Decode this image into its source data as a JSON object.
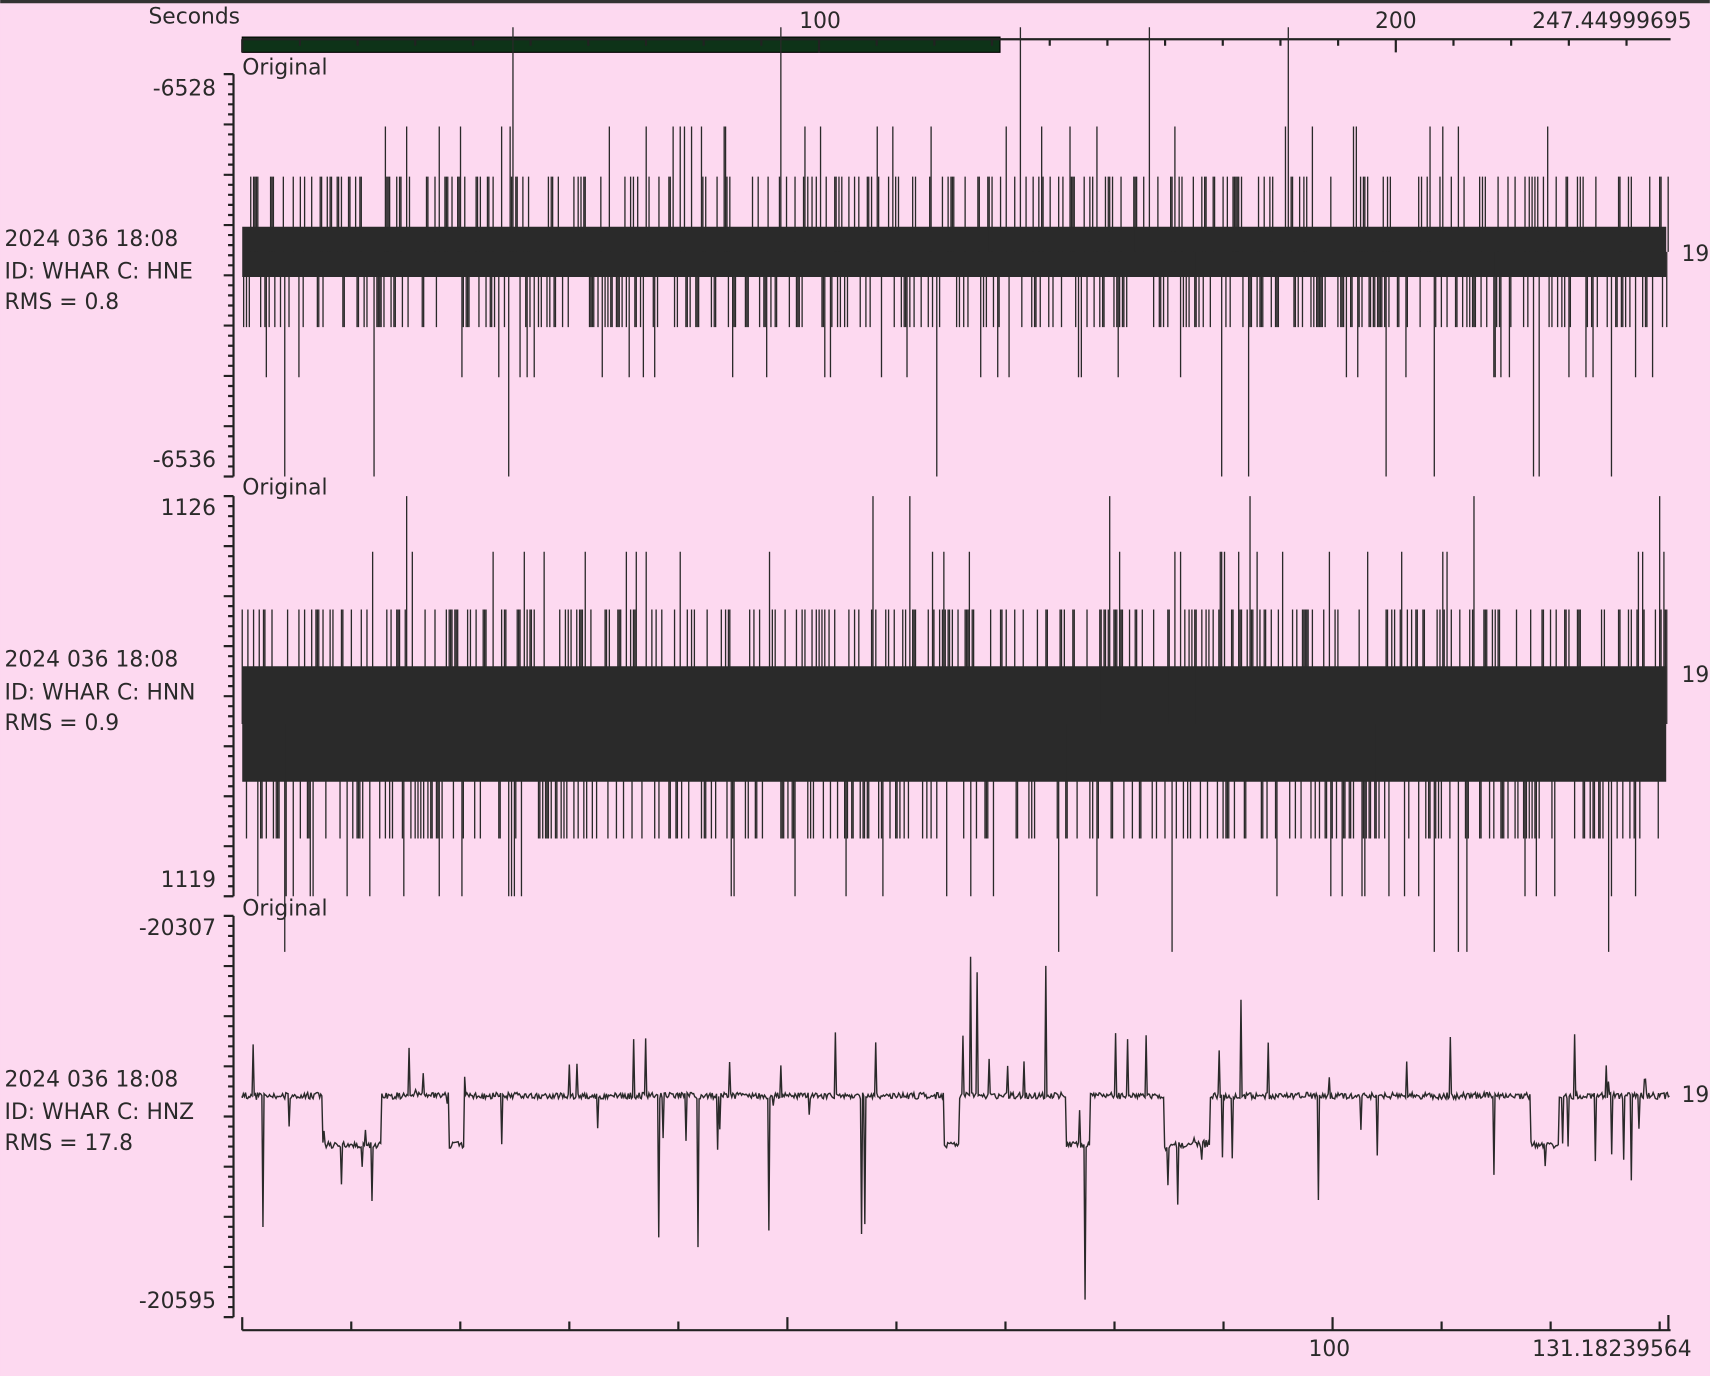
{
  "top_axis": {
    "label": "Seconds",
    "ticks": [
      "100",
      "200",
      "247.44999695"
    ]
  },
  "panels": [
    {
      "tag": "Original",
      "y_top": "-6528",
      "y_bottom": "-6536",
      "date": "2024 036 18:08",
      "id": "ID: WHAR C: HNE",
      "rms": "RMS = 0.8",
      "right_label": "19"
    },
    {
      "tag": "Original",
      "y_top": "1126",
      "y_bottom": "1119",
      "date": "2024 036 18:08",
      "id": "ID: WHAR C: HNN",
      "rms": "RMS = 0.9",
      "right_label": "19"
    },
    {
      "tag": "Original",
      "y_top": "-20307",
      "y_bottom": "-20595",
      "date": "2024 036 18:08",
      "id": "ID: WHAR C: HNZ",
      "rms": "RMS = 17.8",
      "right_label": "19"
    }
  ],
  "bottom_axis": {
    "ticks": [
      "100",
      "131.18239564"
    ]
  }
}
